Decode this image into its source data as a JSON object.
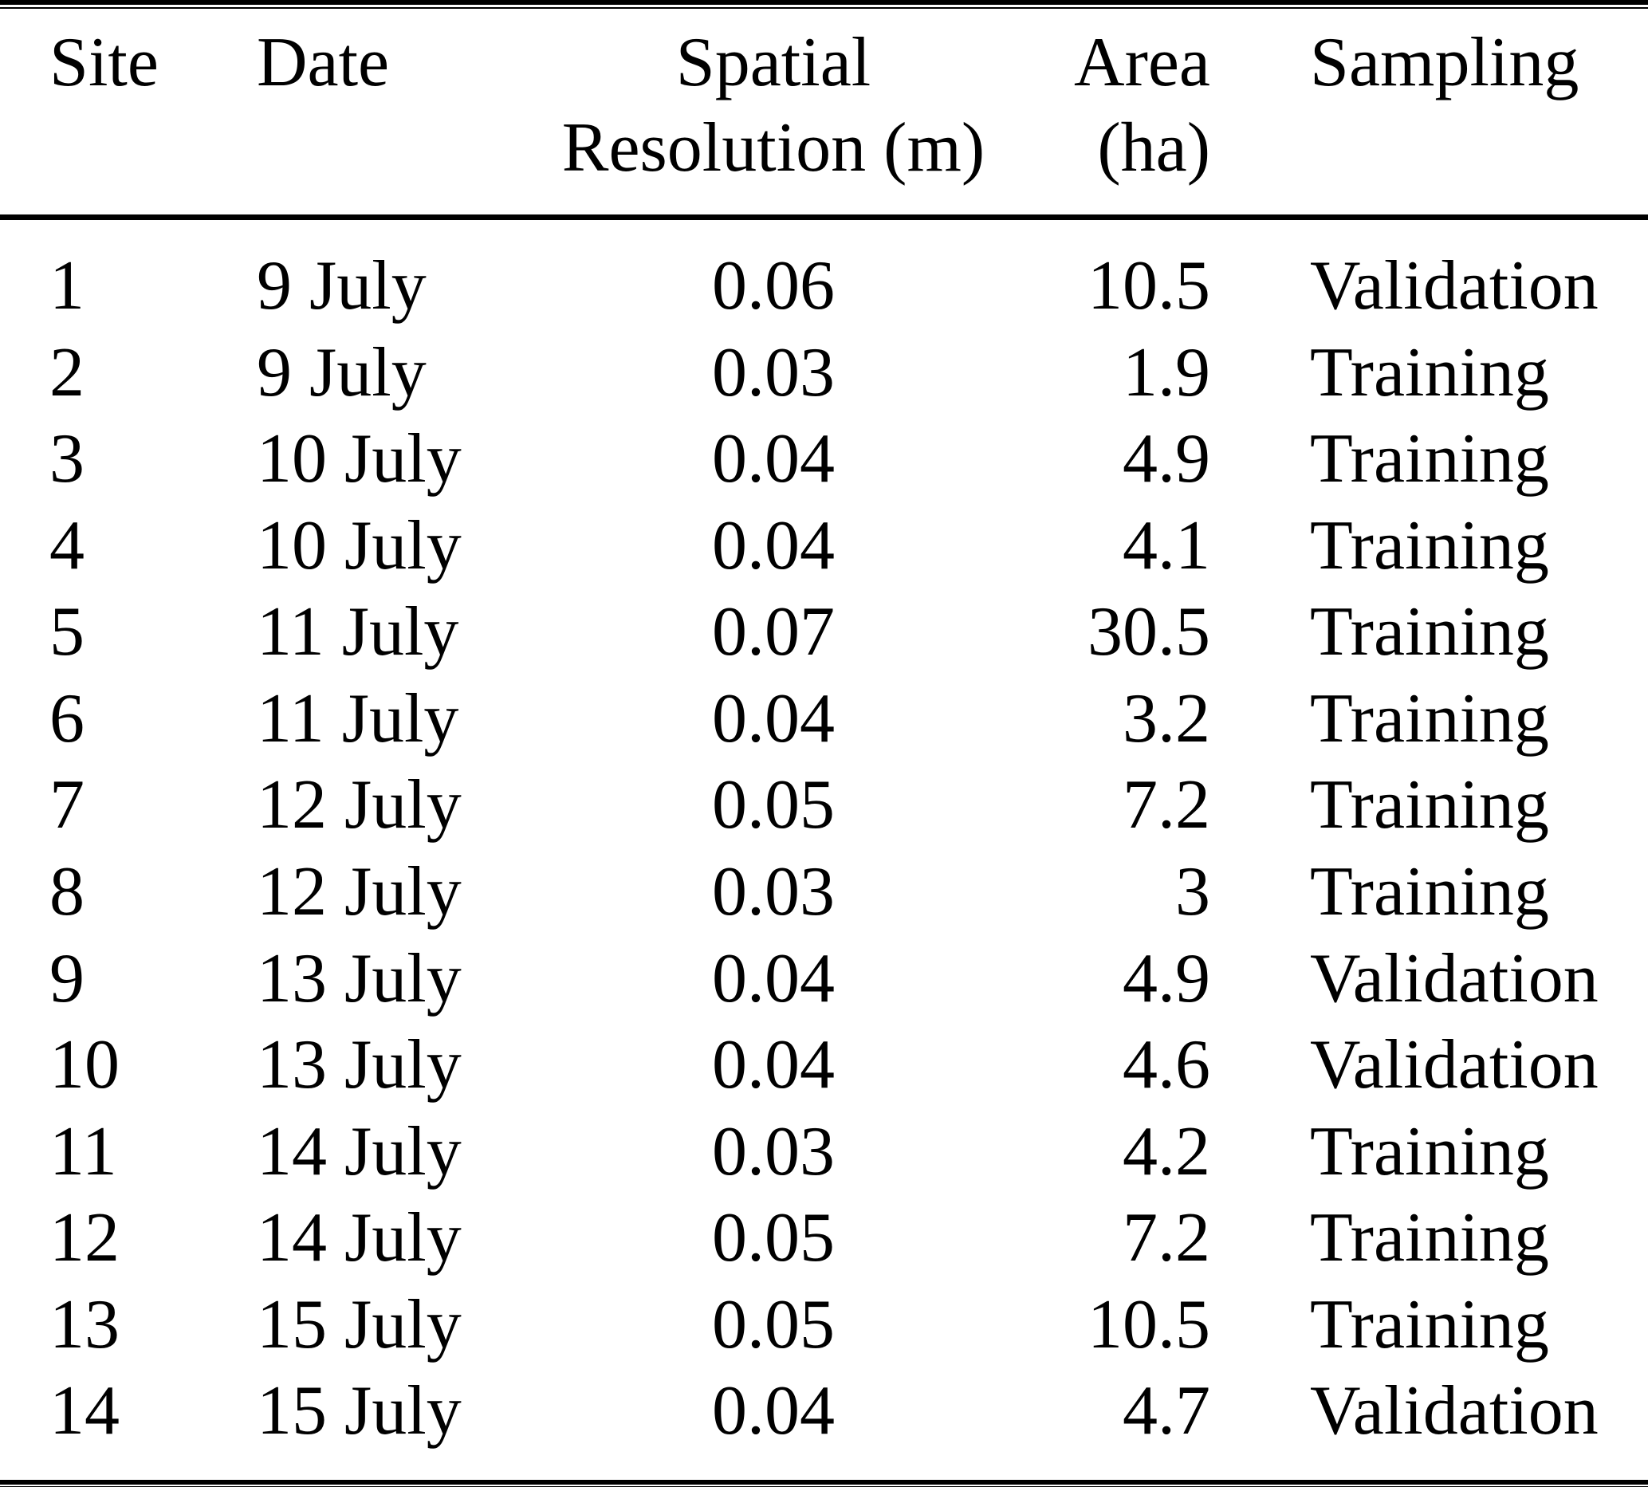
{
  "page": {
    "background_color": "#ffffff",
    "text_color": "#000000",
    "rule_color": "#000000"
  },
  "table": {
    "headers": [
      {
        "id": "site",
        "lines": [
          "Site"
        ],
        "align": "left"
      },
      {
        "id": "date",
        "lines": [
          "Date"
        ],
        "align": "left"
      },
      {
        "id": "resolution",
        "lines": [
          "Spatial",
          "Resolution (m)"
        ],
        "align": "center"
      },
      {
        "id": "area",
        "lines": [
          "Area",
          "(ha)"
        ],
        "align": "right"
      },
      {
        "id": "sampling",
        "lines": [
          "Sampling"
        ],
        "align": "left"
      }
    ],
    "rows": [
      {
        "site": "1",
        "date": "9 July",
        "resolution": "0.06",
        "area": "10.5",
        "sampling": "Validation"
      },
      {
        "site": "2",
        "date": "9 July",
        "resolution": "0.03",
        "area": "1.9",
        "sampling": "Training"
      },
      {
        "site": "3",
        "date": "10 July",
        "resolution": "0.04",
        "area": "4.9",
        "sampling": "Training"
      },
      {
        "site": "4",
        "date": "10 July",
        "resolution": "0.04",
        "area": "4.1",
        "sampling": "Training"
      },
      {
        "site": "5",
        "date": "11 July",
        "resolution": "0.07",
        "area": "30.5",
        "sampling": "Training"
      },
      {
        "site": "6",
        "date": "11 July",
        "resolution": "0.04",
        "area": "3.2",
        "sampling": "Training"
      },
      {
        "site": "7",
        "date": "12 July",
        "resolution": "0.05",
        "area": "7.2",
        "sampling": "Training"
      },
      {
        "site": "8",
        "date": "12 July",
        "resolution": "0.03",
        "area": "3",
        "sampling": "Training"
      },
      {
        "site": "9",
        "date": "13 July",
        "resolution": "0.04",
        "area": "4.9",
        "sampling": "Validation"
      },
      {
        "site": "10",
        "date": "13 July",
        "resolution": "0.04",
        "area": "4.6",
        "sampling": "Validation"
      },
      {
        "site": "11",
        "date": "14 July",
        "resolution": "0.03",
        "area": "4.2",
        "sampling": "Training"
      },
      {
        "site": "12",
        "date": "14 July",
        "resolution": "0.05",
        "area": "7.2",
        "sampling": "Training"
      },
      {
        "site": "13",
        "date": "15 July",
        "resolution": "0.05",
        "area": "10.5",
        "sampling": "Training"
      },
      {
        "site": "14",
        "date": "15 July",
        "resolution": "0.04",
        "area": "4.7",
        "sampling": "Validation"
      }
    ]
  }
}
